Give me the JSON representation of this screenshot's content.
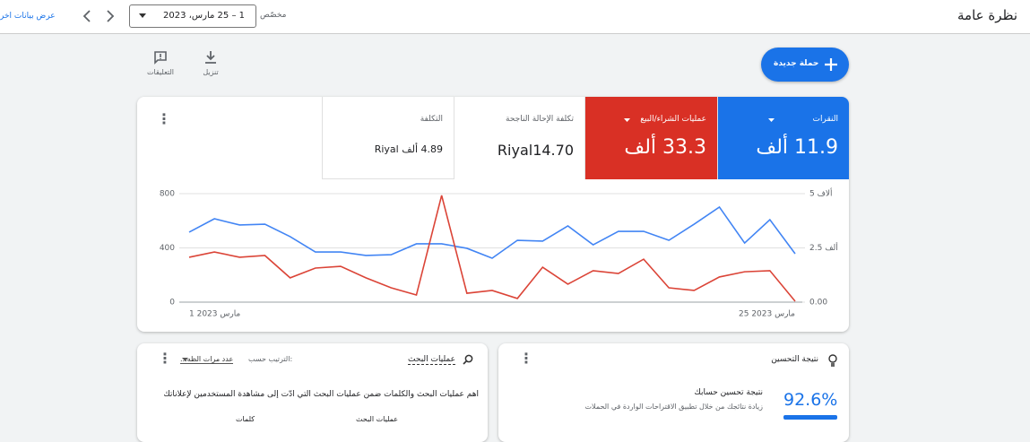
{
  "header": {
    "title": "نظرة عامة",
    "date_mode": "مخصّص",
    "date_range": "1 – 25 مارس، 2023",
    "view_link": "عرض بيانات آخر"
  },
  "toolbar": {
    "new_campaign": "حملة جديدة",
    "download": "تنزيل",
    "feedback": "التعليقات"
  },
  "metrics": [
    {
      "label": "النقرات",
      "value": "11.9 ألف"
    },
    {
      "label": "عمليات الشراء/البيع",
      "value": "33.3 ألف"
    },
    {
      "label": "تكلفة الإحالة الناجحة",
      "value": "Riyal14.70"
    },
    {
      "label": "التكلفة",
      "value": "4.89 ألف Riyal"
    }
  ],
  "chart_data": {
    "type": "line",
    "categories": [
      "1 مارس 2023",
      null,
      null,
      null,
      null,
      null,
      null,
      null,
      null,
      null,
      null,
      null,
      null,
      null,
      null,
      null,
      null,
      null,
      null,
      null,
      null,
      null,
      null,
      null,
      "25 مارس 2023"
    ],
    "series": [
      {
        "color": "#4285f4",
        "values": [
          516,
          615,
          569,
          575,
          483,
          370,
          370,
          344,
          350,
          430,
          430,
          397,
          324,
          456,
          450,
          562,
          423,
          522,
          522,
          456,
          575,
          701,
          436,
          608,
          357
        ]
      },
      {
        "color": "#db4437",
        "axis": "y2",
        "values": [
          2070,
          2310,
          2070,
          2150,
          1120,
          1570,
          1650,
          1120,
          660,
          330,
          4920,
          410,
          540,
          170,
          1610,
          830,
          1450,
          1320,
          1980,
          660,
          540,
          1160,
          1400,
          1450,
          40
        ]
      }
    ],
    "ylim": [
      0,
      800
    ],
    "yticks": [
      0,
      400,
      800
    ],
    "y2lim": [
      0,
      5000
    ],
    "y2ticks": [
      {
        "value": 0,
        "label": "0.00"
      },
      {
        "value": 2500,
        "label": "2.5 ألف"
      },
      {
        "value": 5000,
        "label": "5 ألاف"
      }
    ],
    "grid": true
  },
  "optimization": {
    "title": "نتيجة التحسين",
    "score": "92.6%",
    "heading": "نتيجة تحسين حسابك",
    "description": "زيادة نتائجك من خلال تطبيق الاقتراحات الواردة في الحملات"
  },
  "searches": {
    "title": "عمليات البحث",
    "sort_label": "الترتيب حسب:",
    "sort_value": "عدد مرات الظه...",
    "description": "أهم عمليات البحث والكلمات ضمن عمليات البحث التي أدّت إلى مشاهدة المستخدمين لإعلاناتك",
    "columns": [
      "عمليات البحث",
      "كلمات"
    ]
  }
}
